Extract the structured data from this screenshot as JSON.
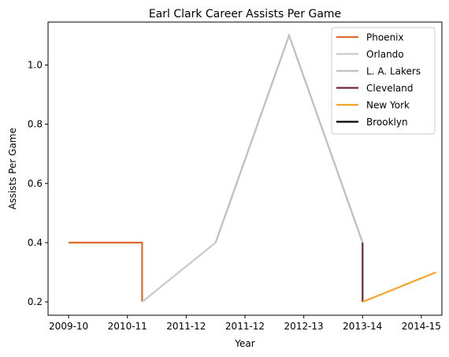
{
  "chart_data": {
    "type": "line",
    "title": "Earl Clark Career Assists Per Game",
    "xlabel": "Year",
    "ylabel": "Assists Per Game",
    "x_ticks": [
      "2009-10",
      "2010-11",
      "2011-12",
      "2011-12",
      "2012-13",
      "2013-14",
      "2014-15"
    ],
    "y_ticks": [
      "0.2",
      "0.4",
      "0.6",
      "0.8",
      "1.0"
    ],
    "xlim": [
      -0.35,
      6.35
    ],
    "ylim": [
      0.155,
      1.145
    ],
    "grid": false,
    "legend_position": "top-right",
    "series": [
      {
        "name": "Phoenix",
        "color": "#e06a2c",
        "x": [
          0,
          1.25,
          1.25
        ],
        "y": [
          0.4,
          0.4,
          0.2
        ]
      },
      {
        "name": "Orlando",
        "color": "#c4cbd1",
        "x": [
          1.25,
          2.5,
          3.75,
          5.0
        ],
        "y": [
          0.2,
          0.4,
          1.1,
          0.4
        ]
      },
      {
        "name": "L. A. Lakers",
        "color": "#c0c0c0",
        "x": [
          2.5,
          3.75,
          5.0
        ],
        "y": [
          0.4,
          1.1,
          0.4
        ]
      },
      {
        "name": "Cleveland",
        "color": "#6f2639",
        "x": [
          5.0,
          5.0
        ],
        "y": [
          0.4,
          0.2
        ]
      },
      {
        "name": "New York",
        "color": "#f6a32a",
        "x": [
          5.0,
          6.25
        ],
        "y": [
          0.2,
          0.3
        ]
      },
      {
        "name": "Brooklyn",
        "color": "#000000",
        "x": [],
        "y": []
      }
    ]
  }
}
